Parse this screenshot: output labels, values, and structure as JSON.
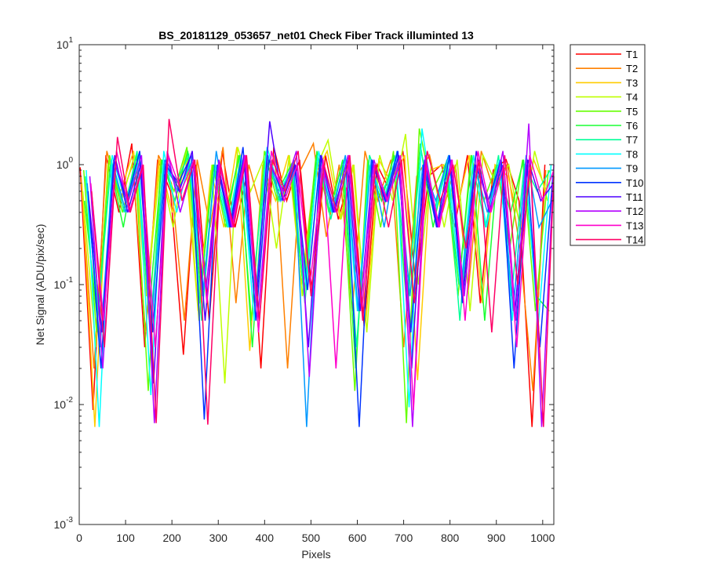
{
  "chart_data": {
    "type": "line",
    "title": "BS_20181129_053657_net01   Check Fiber     Track illuminted 13",
    "xlabel": "Pixels",
    "ylabel": "Net Signal (ADU/pix/sec)",
    "xlim": [
      0,
      1024
    ],
    "ylim": [
      0.001,
      10
    ],
    "yscale": "log",
    "xticks": [
      0,
      100,
      200,
      300,
      400,
      500,
      600,
      700,
      800,
      900,
      1000
    ],
    "yticks": [
      {
        "value": 0.001,
        "base": "10",
        "exp": "-3"
      },
      {
        "value": 0.01,
        "base": "10",
        "exp": "-2"
      },
      {
        "value": 0.1,
        "base": "10",
        "exp": "-1"
      },
      {
        "value": 1,
        "base": "10",
        "exp": "0"
      },
      {
        "value": 10,
        "base": "10",
        "exp": "1"
      }
    ],
    "grid": false,
    "legend_position": "outside-top-right",
    "series": [
      {
        "name": "T1",
        "color": "#ff0000",
        "values": [
          0.95,
          0.009,
          1.2,
          0.4,
          1.5,
          0.03,
          1.1,
          0.6,
          0.026,
          1.0,
          0.05,
          1.3,
          0.3,
          0.9,
          0.02,
          1.4,
          0.5,
          1.1,
          0.08,
          1.2,
          0.35,
          0.9,
          0.045,
          1.0,
          0.6,
          1.3,
          0.1,
          0.8,
          1.0,
          0.3,
          1.2,
          0.07,
          0.9,
          1.1,
          0.5,
          0.0065,
          1.0
        ]
      },
      {
        "name": "T2",
        "color": "#ff8000",
        "values": [
          0.8,
          0.02,
          1.3,
          0.5,
          1.0,
          0.04,
          1.2,
          0.7,
          0.05,
          1.1,
          0.3,
          1.4,
          0.07,
          1.0,
          0.4,
          1.2,
          0.02,
          0.9,
          1.5,
          0.25,
          1.0,
          0.06,
          1.3,
          0.5,
          1.1,
          0.03,
          0.8,
          1.2,
          0.4,
          1.0,
          0.09,
          1.3,
          0.6,
          1.0,
          0.2,
          0.013,
          0.9
        ]
      },
      {
        "name": "T3",
        "color": "#ffcc00",
        "values": [
          0.7,
          0.0065,
          1.0,
          0.6,
          1.3,
          0.08,
          1.1,
          0.4,
          1.2,
          0.06,
          0.9,
          0.3,
          1.4,
          0.028,
          1.0,
          0.5,
          1.2,
          0.1,
          0.8,
          1.3,
          0.35,
          1.0,
          0.05,
          1.1,
          0.7,
          1.2,
          0.016,
          0.9,
          1.0,
          0.4,
          1.2,
          0.07,
          1.0,
          0.8,
          0.3,
          1.1,
          0.6
        ]
      },
      {
        "name": "T4",
        "color": "#bfff00",
        "values": [
          0.6,
          0.03,
          1.1,
          0.5,
          1.2,
          0.09,
          1.0,
          0.3,
          1.3,
          0.05,
          1.0,
          0.015,
          1.4,
          0.6,
          1.1,
          0.2,
          1.2,
          0.08,
          0.9,
          1.6,
          0.35,
          1.0,
          0.04,
          1.2,
          0.5,
          1.8,
          0.1,
          1.0,
          0.3,
          1.1,
          0.06,
          1.2,
          0.7,
          1.0,
          0.25,
          1.3,
          0.5
        ]
      },
      {
        "name": "T5",
        "color": "#66ff00",
        "values": [
          0.9,
          0.04,
          1.2,
          0.4,
          1.0,
          0.013,
          1.1,
          0.6,
          1.4,
          0.07,
          1.0,
          0.3,
          1.2,
          0.05,
          1.3,
          0.5,
          0.9,
          0.1,
          1.2,
          0.4,
          1.0,
          0.013,
          1.1,
          0.3,
          1.3,
          0.007,
          2.0,
          0.6,
          1.0,
          0.08,
          1.2,
          0.5,
          1.0,
          0.2,
          1.1,
          0.06,
          0.9
        ]
      },
      {
        "name": "T6",
        "color": "#1aff33",
        "values": [
          0.5,
          0.05,
          1.0,
          0.3,
          1.2,
          0.06,
          1.1,
          0.5,
          1.3,
          0.09,
          1.0,
          0.4,
          1.2,
          0.03,
          1.1,
          0.6,
          1.0,
          0.08,
          1.3,
          0.4,
          1.1,
          0.02,
          1.0,
          0.5,
          1.2,
          0.06,
          1.5,
          0.3,
          1.0,
          0.1,
          1.2,
          0.05,
          1.0,
          0.4,
          1.1,
          0.08,
          0.06
        ]
      },
      {
        "name": "T7",
        "color": "#00ff99",
        "values": [
          0.8,
          0.06,
          1.1,
          0.4,
          1.3,
          0.04,
          1.0,
          0.7,
          1.2,
          0.05,
          0.9,
          0.3,
          1.1,
          0.1,
          1.3,
          0.5,
          1.0,
          0.07,
          1.2,
          0.35,
          1.0,
          0.03,
          1.2,
          0.6,
          1.0,
          0.09,
          1.3,
          0.4,
          1.1,
          0.05,
          1.0,
          0.3,
          1.2,
          0.08,
          1.0,
          0.6,
          0.9
        ]
      },
      {
        "name": "T8",
        "color": "#00ffff",
        "values": [
          0.9,
          0.0065,
          1.2,
          0.5,
          1.0,
          0.012,
          1.3,
          0.4,
          1.1,
          0.08,
          1.0,
          0.3,
          1.2,
          0.05,
          1.4,
          0.6,
          1.0,
          0.1,
          1.3,
          0.4,
          1.1,
          0.06,
          1.0,
          0.5,
          1.2,
          0.0095,
          2.0,
          0.4,
          1.0,
          0.09,
          1.2,
          0.3,
          1.1,
          0.05,
          1.0,
          0.045,
          1.0
        ]
      },
      {
        "name": "T9",
        "color": "#0099ff",
        "values": [
          0.7,
          0.03,
          1.0,
          0.4,
          1.2,
          0.05,
          1.1,
          0.6,
          1.0,
          0.09,
          1.3,
          0.3,
          1.0,
          0.07,
          1.2,
          0.5,
          1.1,
          0.0065,
          1.0,
          0.4,
          1.2,
          0.06,
          1.1,
          0.3,
          1.3,
          0.08,
          1.0,
          0.5,
          1.2,
          0.1,
          1.0,
          0.4,
          1.1,
          0.06,
          1.2,
          0.3,
          0.5
        ]
      },
      {
        "name": "T10",
        "color": "#0033ff",
        "values": [
          0.6,
          0.02,
          1.1,
          0.5,
          1.3,
          0.04,
          1.0,
          0.7,
          1.2,
          0.0075,
          1.0,
          0.3,
          1.4,
          0.05,
          1.1,
          0.6,
          1.0,
          0.09,
          1.2,
          0.4,
          1.0,
          0.0065,
          1.1,
          0.5,
          1.3,
          0.04,
          1.0,
          0.3,
          1.2,
          0.07,
          1.0,
          0.5,
          1.1,
          0.02,
          1.0,
          0.03,
          0.8
        ]
      },
      {
        "name": "T11",
        "color": "#4d00ff",
        "values": [
          0.5,
          0.04,
          1.2,
          0.4,
          1.0,
          0.015,
          1.1,
          0.6,
          1.3,
          0.05,
          1.0,
          0.3,
          1.2,
          0.08,
          2.3,
          0.5,
          1.0,
          0.03,
          1.2,
          0.4,
          1.1,
          0.06,
          1.0,
          0.5,
          1.2,
          0.02,
          1.1,
          0.3,
          1.0,
          0.09,
          1.3,
          0.4,
          1.0,
          0.06,
          1.1,
          0.5,
          0.7
        ]
      },
      {
        "name": "T12",
        "color": "#b300ff",
        "values": [
          0.8,
          0.02,
          1.0,
          0.5,
          1.2,
          0.007,
          1.3,
          0.4,
          1.0,
          0.09,
          1.1,
          0.3,
          1.2,
          0.05,
          1.0,
          0.6,
          1.3,
          0.017,
          1.0,
          0.4,
          1.2,
          0.07,
          1.1,
          0.5,
          1.0,
          0.0065,
          1.2,
          0.3,
          1.1,
          0.08,
          1.0,
          0.4,
          1.3,
          0.05,
          2.2,
          0.0065,
          1.0
        ]
      },
      {
        "name": "T13",
        "color": "#ff00cc",
        "values": [
          0.7,
          0.05,
          1.3,
          0.4,
          1.0,
          0.03,
          1.2,
          0.6,
          1.1,
          0.07,
          1.0,
          0.3,
          1.2,
          0.04,
          1.3,
          0.5,
          1.0,
          0.1,
          1.1,
          0.02,
          1.2,
          0.06,
          1.0,
          0.5,
          1.2,
          0.009,
          1.0,
          0.3,
          1.1,
          0.05,
          1.3,
          0.4,
          1.0,
          0.03,
          1.2,
          0.5,
          0.9
        ]
      },
      {
        "name": "T14",
        "color": "#ff0066",
        "values": [
          0.6,
          0.03,
          1.7,
          0.4,
          1.0,
          0.007,
          2.4,
          0.5,
          1.1,
          0.0068,
          1.0,
          0.3,
          1.2,
          0.05,
          1.1,
          0.6,
          1.3,
          0.08,
          1.0,
          0.4,
          1.2,
          0.05,
          1.0,
          0.3,
          1.1,
          0.07,
          1.3,
          0.5,
          1.0,
          0.2,
          1.1,
          0.04,
          1.2,
          0.1,
          1.0,
          0.0065,
          0.8
        ]
      }
    ]
  }
}
